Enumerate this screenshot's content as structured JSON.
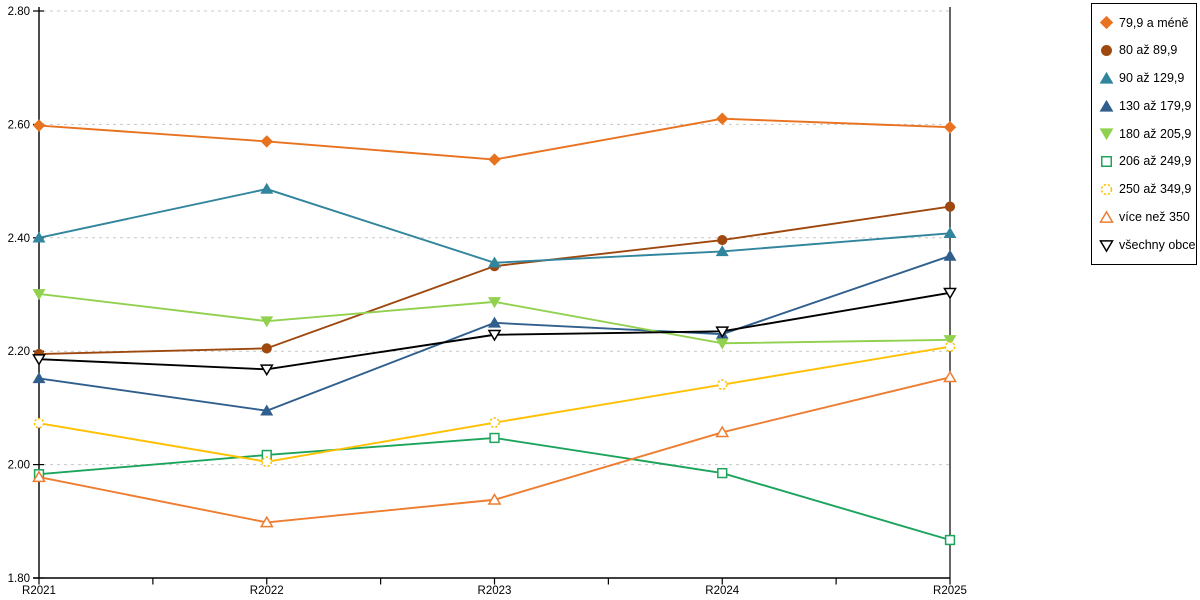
{
  "chart_data": {
    "type": "line",
    "title": "",
    "xlabel": "",
    "ylabel": "",
    "categories": [
      "R2021",
      "R2022",
      "R2023",
      "R2024",
      "R2025"
    ],
    "series": [
      {
        "name": "79,9 a méně",
        "color": "#E8721F",
        "marker": "diamond",
        "marker_filled": true,
        "values": [
          2.598,
          2.57,
          2.538,
          2.61,
          2.595
        ]
      },
      {
        "name": "80 až 89,9",
        "color": "#9E480E",
        "marker": "circle",
        "marker_filled": true,
        "values": [
          2.195,
          2.205,
          2.35,
          2.396,
          2.455
        ]
      },
      {
        "name": "90 až 129,9",
        "color": "#31859C",
        "marker": "triangle-up",
        "marker_filled": true,
        "values": [
          2.4,
          2.486,
          2.356,
          2.376,
          2.408
        ]
      },
      {
        "name": "130 až 179,9",
        "color": "#305F8E",
        "marker": "triangle-up",
        "marker_filled": true,
        "values": [
          2.152,
          2.095,
          2.25,
          2.23,
          2.368
        ]
      },
      {
        "name": "180 až 205,9",
        "color": "#92D050",
        "marker": "triangle-down",
        "marker_filled": true,
        "values": [
          2.301,
          2.253,
          2.287,
          2.214,
          2.22
        ]
      },
      {
        "name": "206 až 249,9",
        "color": "#1CA45C",
        "marker": "square",
        "marker_filled": false,
        "values": [
          1.983,
          2.017,
          2.047,
          1.985,
          1.867
        ]
      },
      {
        "name": "250 až 349,9",
        "color": "#FFC000",
        "marker": "circle",
        "marker_filled": false,
        "marker_dashed": true,
        "values": [
          2.073,
          2.005,
          2.074,
          2.141,
          2.208
        ]
      },
      {
        "name": "více než 350",
        "color": "#ED7D31",
        "marker": "triangle-up",
        "marker_filled": false,
        "values": [
          1.978,
          1.898,
          1.938,
          2.057,
          2.154
        ]
      },
      {
        "name": "všechny obce",
        "color": "#000000",
        "marker": "triangle-down",
        "marker_filled": false,
        "values": [
          2.186,
          2.168,
          2.229,
          2.235,
          2.303
        ]
      }
    ],
    "ylim": [
      1.8,
      2.8
    ],
    "ytick_step": 0.2,
    "ytick_labels": [
      "1.80",
      "2.00",
      "2.20",
      "2.40",
      "2.60",
      "2.80"
    ],
    "xtick_labels": [
      "R2021",
      "R2022",
      "R2023",
      "R2024",
      "R2025"
    ],
    "grid": "horizontal-dashed",
    "grid_color": "#c7c7c7",
    "axis_color": "#000000",
    "legend_position": "top-right"
  }
}
